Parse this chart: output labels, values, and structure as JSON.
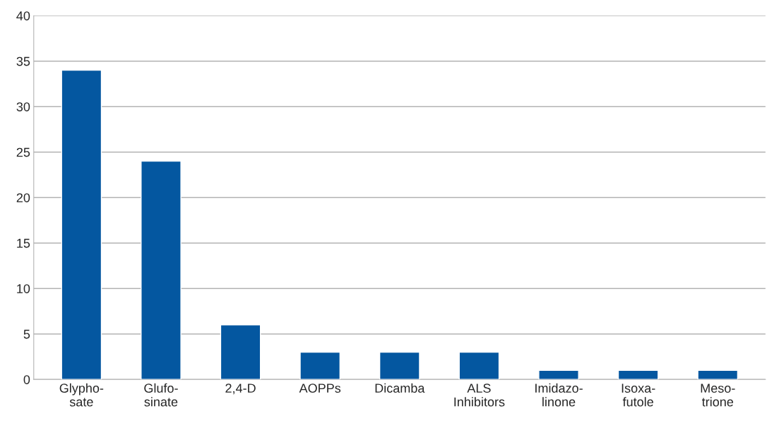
{
  "chart_data": {
    "type": "bar",
    "categories": [
      "Glypho-\nsate",
      "Glufo-\nsinate",
      "2,4-D",
      "AOPPs",
      "Dicamba",
      "ALS\nInhibitors",
      "Imidazo-\nlinone",
      "Isoxa-\nfutole",
      "Meso-\ntrione"
    ],
    "values": [
      34,
      24,
      6,
      3,
      3,
      3,
      1,
      1,
      1
    ],
    "color": "#0457a0",
    "ylim": [
      0,
      40
    ],
    "yticks": [
      0,
      5,
      10,
      15,
      20,
      25,
      30,
      35,
      40
    ],
    "grid": "y",
    "legend": false
  }
}
